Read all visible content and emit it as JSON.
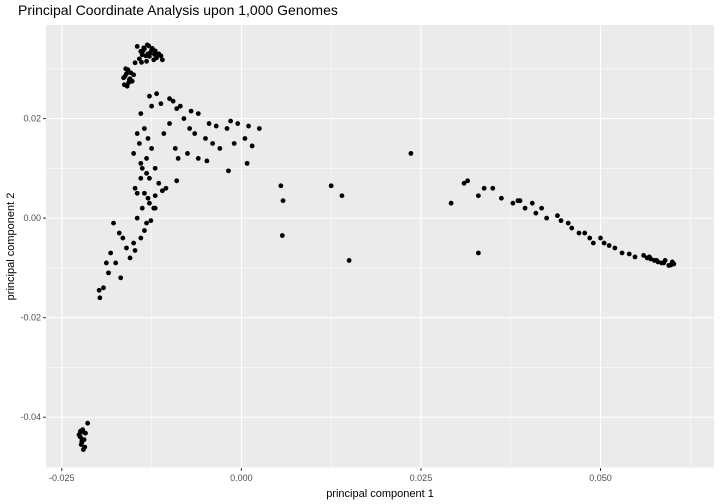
{
  "chart_data": {
    "type": "scatter",
    "title": "Principal Coordinate Analysis upon 1,000 Genomes",
    "xlabel": "principal component 1",
    "ylabel": "principal component 2",
    "xlim": [
      -0.0272,
      0.0658
    ],
    "ylim": [
      -0.0502,
      0.0388
    ],
    "x_ticks": [
      {
        "value": -0.025,
        "label": "-0.025"
      },
      {
        "value": 0.0,
        "label": "0.000"
      },
      {
        "value": 0.025,
        "label": "0.025"
      },
      {
        "value": 0.05,
        "label": "0.050"
      }
    ],
    "y_ticks": [
      {
        "value": -0.04,
        "label": "-0.04"
      },
      {
        "value": -0.02,
        "label": "-0.02"
      },
      {
        "value": 0.0,
        "label": "0.00"
      },
      {
        "value": 0.02,
        "label": "0.02"
      }
    ],
    "grid": true,
    "legend": "none",
    "colors": {
      "panel": "#ebebeb",
      "grid": "#ffffff",
      "point": "#000000"
    },
    "series": [
      {
        "x": [
          -0.013,
          -0.014,
          -0.0138,
          -0.0135,
          -0.0128,
          -0.0122,
          -0.0118,
          -0.0145,
          -0.0125,
          -0.0132,
          -0.0115,
          -0.0142,
          -0.0136,
          -0.0127,
          -0.012,
          -0.0133,
          -0.0139,
          -0.0124,
          -0.0131,
          -0.0112,
          -0.011,
          -0.0148,
          -0.0129,
          -0.0137,
          -0.0121,
          -0.0155,
          -0.016,
          -0.0163,
          -0.0158,
          -0.0152,
          -0.0162,
          -0.0157,
          -0.0154,
          -0.0161,
          -0.0159,
          -0.015,
          -0.0156,
          -0.0164,
          -0.0128,
          -0.0118,
          -0.01,
          -0.0095,
          -0.0112,
          -0.0125,
          -0.0085,
          -0.009,
          -0.007,
          -0.006,
          -0.0045,
          -0.0035,
          -0.002,
          -0.0015,
          -0.0005,
          0.001,
          0.0025,
          -0.008,
          -0.0072,
          -0.0065,
          -0.005,
          -0.004,
          -0.003,
          -0.001,
          0.0005,
          0.0015,
          -0.01,
          -0.0108,
          -0.0092,
          -0.0088,
          -0.0075,
          -0.006,
          -0.0048,
          -0.0018,
          0.0008,
          -0.009,
          -0.014,
          -0.0145,
          -0.015,
          -0.0135,
          -0.013,
          -0.0125,
          -0.0142,
          -0.0132,
          -0.0138,
          -0.012,
          -0.0128,
          -0.0115,
          -0.0105,
          -0.014,
          -0.0148,
          -0.0135,
          -0.013,
          -0.0122,
          -0.0138,
          -0.0145,
          -0.0132,
          -0.0126,
          -0.012,
          -0.014,
          -0.015,
          -0.0155,
          -0.016,
          -0.0165,
          -0.017,
          -0.0178,
          -0.0182,
          -0.0188,
          -0.014,
          -0.0132,
          -0.0145,
          -0.0128,
          -0.0135,
          -0.0148,
          -0.012,
          -0.011,
          -0.0198,
          -0.0197,
          -0.0192,
          -0.0185,
          -0.0175,
          -0.0168,
          -0.022,
          -0.0222,
          -0.0224,
          -0.0218,
          -0.0226,
          -0.0221,
          -0.0223,
          -0.0219,
          -0.0225,
          -0.022,
          -0.0217,
          -0.0222,
          -0.0224,
          -0.0214,
          0.0055,
          0.0058,
          0.0057,
          0.0125,
          0.014,
          0.015,
          0.0236,
          0.0292,
          0.031,
          0.0315,
          0.033,
          0.0338,
          0.035,
          0.0362,
          0.0378,
          0.0385,
          0.0388,
          0.0395,
          0.0405,
          0.041,
          0.0418,
          0.0425,
          0.044,
          0.0445,
          0.0455,
          0.046,
          0.047,
          0.0478,
          0.0485,
          0.049,
          0.05,
          0.0505,
          0.0512,
          0.052,
          0.053,
          0.054,
          0.0548,
          0.056,
          0.0565,
          0.057,
          0.0575,
          0.058,
          0.0585,
          0.059,
          0.0595,
          0.06,
          0.0602,
          0.0568,
          0.0578,
          0.0588,
          0.0598,
          0.033
        ],
        "y": [
          0.033,
          0.0335,
          0.0328,
          0.034,
          0.0325,
          0.0318,
          0.0322,
          0.0345,
          0.0338,
          0.0315,
          0.033,
          0.032,
          0.0342,
          0.0332,
          0.0336,
          0.0326,
          0.0313,
          0.0341,
          0.0348,
          0.0326,
          0.0318,
          0.0312,
          0.0346,
          0.0336,
          0.0329,
          0.028,
          0.029,
          0.0268,
          0.0298,
          0.0275,
          0.0285,
          0.0272,
          0.0292,
          0.03,
          0.0265,
          0.0288,
          0.0278,
          0.0282,
          0.0245,
          0.025,
          0.024,
          0.0235,
          0.023,
          0.0225,
          0.0225,
          0.022,
          0.0215,
          0.021,
          0.019,
          0.0185,
          0.018,
          0.0195,
          0.019,
          0.0185,
          0.018,
          0.02,
          0.018,
          0.017,
          0.016,
          0.015,
          0.014,
          0.015,
          0.016,
          0.0145,
          0.019,
          0.017,
          0.014,
          0.012,
          0.013,
          0.012,
          0.0115,
          0.0095,
          0.011,
          0.0075,
          0.021,
          0.017,
          0.013,
          0.018,
          0.016,
          0.014,
          0.015,
          0.012,
          0.01,
          0.01,
          0.008,
          0.007,
          0.006,
          0.008,
          0.006,
          0.005,
          0.004,
          0.002,
          0.002,
          0.0,
          -0.001,
          -0.0005,
          0.002,
          -0.004,
          -0.005,
          -0.008,
          -0.006,
          -0.004,
          -0.003,
          -0.001,
          -0.007,
          -0.009,
          0.011,
          0.009,
          0.005,
          0.003,
          -0.0025,
          -0.0065,
          0.0045,
          0.0055,
          -0.0145,
          -0.016,
          -0.014,
          -0.011,
          -0.009,
          -0.012,
          -0.043,
          -0.045,
          -0.044,
          -0.046,
          -0.0435,
          -0.0425,
          -0.0455,
          -0.0445,
          -0.0438,
          -0.0465,
          -0.0432,
          -0.0448,
          -0.0428,
          -0.0412,
          0.0065,
          0.0035,
          -0.0035,
          0.0065,
          0.0045,
          -0.0085,
          0.013,
          0.003,
          0.007,
          0.0075,
          0.0045,
          0.006,
          0.006,
          0.004,
          0.003,
          0.0035,
          0.0035,
          0.002,
          0.003,
          0.001,
          0.002,
          0.0,
          0.0005,
          -0.0005,
          -0.001,
          -0.002,
          -0.003,
          -0.003,
          -0.004,
          -0.005,
          -0.004,
          -0.005,
          -0.0055,
          -0.006,
          -0.007,
          -0.0072,
          -0.0078,
          -0.0075,
          -0.008,
          -0.0082,
          -0.0085,
          -0.0088,
          -0.009,
          -0.0085,
          -0.0095,
          -0.0088,
          -0.0092,
          -0.0078,
          -0.0085,
          -0.009,
          -0.0094,
          -0.007
        ]
      }
    ]
  }
}
